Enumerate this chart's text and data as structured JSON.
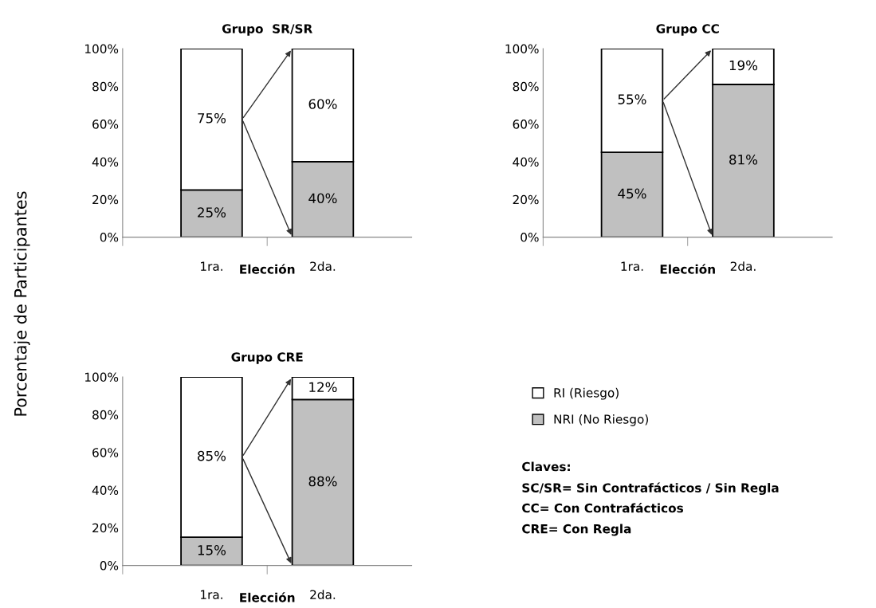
{
  "chart_data": [
    {
      "type": "bar",
      "title": "Grupo  SR/SR",
      "xlabel": "Elección",
      "ylabel": "Porcentaje de Participantes",
      "categories": [
        "1ra.",
        "2da."
      ],
      "stacked": true,
      "ylim": [
        0,
        100
      ],
      "yticks": [
        {
          "value": 0,
          "label": "0%"
        },
        {
          "value": 20,
          "label": "20%"
        },
        {
          "value": 40,
          "label": "40%"
        },
        {
          "value": 60,
          "label": "60%"
        },
        {
          "value": 80,
          "label": "80%"
        },
        {
          "value": 100,
          "label": "100%"
        }
      ],
      "grid": false,
      "legend": false,
      "series": [
        {
          "color": "#c0c0c0",
          "values": [
            25,
            40
          ],
          "value_labels": [
            "25%",
            "40%"
          ]
        },
        {
          "color": "#ffffff",
          "values": [
            75,
            60
          ],
          "value_labels": [
            "75%",
            "60%"
          ]
        }
      ]
    },
    {
      "type": "bar",
      "title": "Grupo CC",
      "xlabel": "Elección",
      "categories": [
        "1ra.",
        "2da."
      ],
      "stacked": true,
      "ylim": [
        0,
        100
      ],
      "yticks": [
        {
          "value": 0,
          "label": "0%"
        },
        {
          "value": 20,
          "label": "20%"
        },
        {
          "value": 40,
          "label": "40%"
        },
        {
          "value": 60,
          "label": "60%"
        },
        {
          "value": 80,
          "label": "80%"
        },
        {
          "value": 100,
          "label": "100%"
        }
      ],
      "grid": false,
      "legend": false,
      "series": [
        {
          "color": "#c0c0c0",
          "values": [
            45,
            81
          ],
          "value_labels": [
            "45%",
            "81%"
          ]
        },
        {
          "color": "#ffffff",
          "values": [
            55,
            19
          ],
          "value_labels": [
            "55%",
            "19%"
          ]
        }
      ]
    },
    {
      "type": "bar",
      "title": "Grupo CRE",
      "xlabel": "Elección",
      "categories": [
        "1ra.",
        "2da."
      ],
      "stacked": true,
      "ylim": [
        0,
        100
      ],
      "yticks": [
        {
          "value": 0,
          "label": "0%"
        },
        {
          "value": 20,
          "label": "20%"
        },
        {
          "value": 40,
          "label": "40%"
        },
        {
          "value": 60,
          "label": "60%"
        },
        {
          "value": 80,
          "label": "80%"
        },
        {
          "value": 100,
          "label": "100%"
        }
      ],
      "grid": false,
      "legend": "right",
      "series": [
        {
          "name": "NRI (No Riesgo)",
          "color": "#c0c0c0",
          "values": [
            15,
            88
          ],
          "value_labels": [
            "15%",
            "88%"
          ]
        },
        {
          "name": "RI (Riesgo)",
          "color": "#ffffff",
          "values": [
            85,
            12
          ],
          "value_labels": [
            "85%",
            "12%"
          ]
        }
      ],
      "annotations": [
        "Claves:",
        "SC/SR= Sin Contrafácticos / Sin Regla",
        "CC= Con Contrafácticos",
        "CRE= Con Regla"
      ]
    }
  ]
}
